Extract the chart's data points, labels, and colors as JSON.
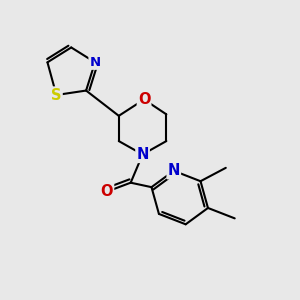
{
  "bg_color": "#e8e8e8",
  "bond_color": "#000000",
  "bond_width": 1.5,
  "atom_colors": {
    "N": "#0000cc",
    "O": "#cc0000",
    "S": "#cccc00"
  },
  "font_size": 9.5
}
